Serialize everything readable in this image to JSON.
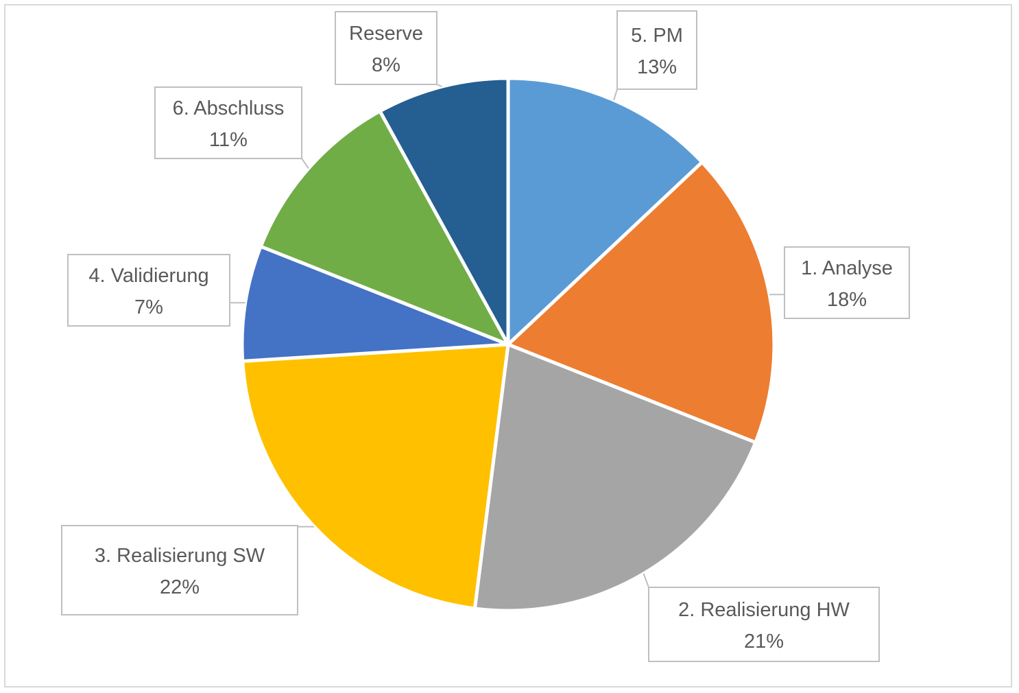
{
  "chart_data": {
    "type": "pie",
    "title": "",
    "start_angle_deg": 0,
    "direction": "clockwise",
    "slices": [
      {
        "name": "5. PM",
        "value": 13,
        "label": "13%",
        "color": "#5b9bd5"
      },
      {
        "name": "1. Analyse",
        "value": 18,
        "label": "18%",
        "color": "#ed7d31"
      },
      {
        "name": "2. Realisierung HW",
        "value": 21,
        "label": "21%",
        "color": "#a5a5a5"
      },
      {
        "name": "3. Realisierung SW",
        "value": 22,
        "label": "22%",
        "color": "#ffc000"
      },
      {
        "name": "4. Validierung",
        "value": 7,
        "label": "7%",
        "color": "#4472c4"
      },
      {
        "name": "6. Abschluss",
        "value": 11,
        "label": "11%",
        "color": "#70ad47"
      },
      {
        "name": "Reserve",
        "value": 8,
        "label": "8%",
        "color": "#255e91"
      }
    ]
  }
}
